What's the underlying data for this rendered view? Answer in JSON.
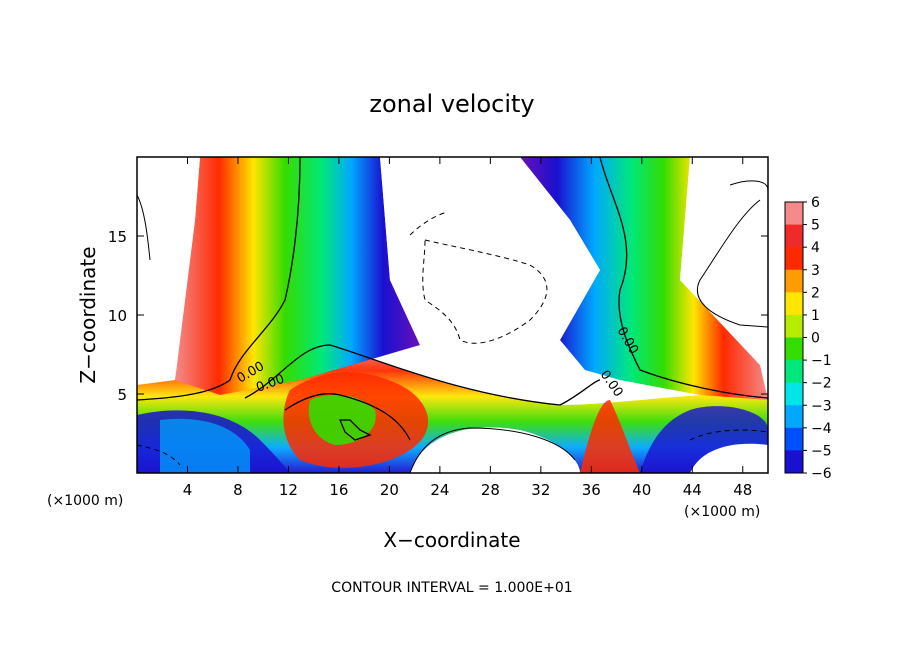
{
  "chart_data": {
    "type": "heatmap",
    "title": "zonal velocity",
    "xlabel": "X−coordinate",
    "ylabel": "Z−coordinate",
    "x_unit_left": "(×1000 m)",
    "x_unit_right": "(×1000 m)",
    "footer": "CONTOUR INTERVAL = 1.000E+01",
    "xlim": [
      0,
      50
    ],
    "ylim": [
      0,
      20
    ],
    "x_ticks": [
      4,
      8,
      12,
      16,
      20,
      24,
      28,
      32,
      36,
      40,
      44,
      48
    ],
    "x_tick_labels": [
      "4",
      "8",
      "12",
      "16",
      "20",
      "24",
      "28",
      "32",
      "36",
      "40",
      "44",
      "48"
    ],
    "y_ticks": [
      5,
      10,
      15
    ],
    "y_tick_labels": [
      "5",
      "10",
      "15"
    ],
    "contour_labels": [
      "0.00",
      "0.00",
      "0.00",
      "0.00"
    ],
    "colorbar": {
      "levels": [
        6,
        5,
        4,
        3,
        2,
        1,
        0,
        -1,
        -2,
        -3,
        -4,
        -5,
        -6
      ],
      "labels": [
        "6",
        "5",
        "4",
        "3",
        "2",
        "1",
        "0",
        "−1",
        "−2",
        "−3",
        "−4",
        "−5",
        "−6"
      ],
      "colors": [
        "#f48a8a",
        "#ee2a2a",
        "#ff2a00",
        "#ff9c00",
        "#ffe600",
        "#b6ec00",
        "#34dc00",
        "#00e87a",
        "#00e6e6",
        "#00a8ff",
        "#0050ff",
        "#1a10d0",
        "#6a10b8"
      ]
    }
  }
}
